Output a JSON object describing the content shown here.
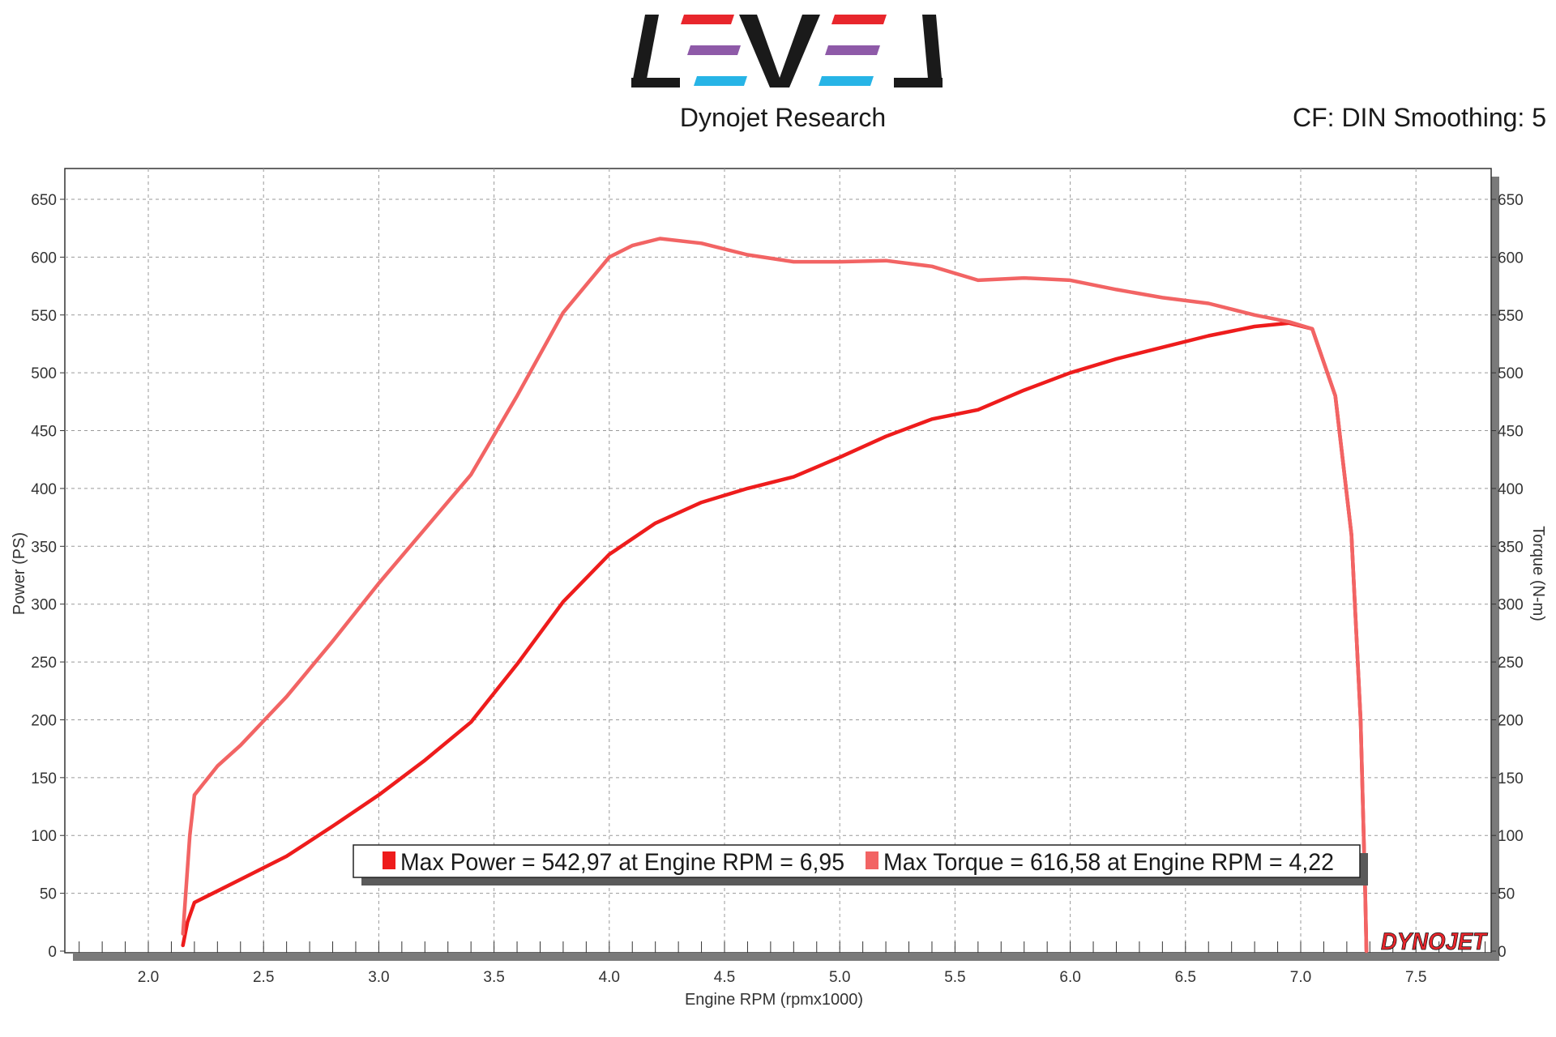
{
  "header": {
    "logo_name": "LEVEL",
    "company": "Dynojet Research",
    "settings": "CF: DIN Smoothing: 5",
    "brand_colors": [
      "#e8262c",
      "#8e5aa8",
      "#27b4e6"
    ]
  },
  "branding": {
    "watermark": "DYNOJET"
  },
  "chart_data": {
    "type": "line",
    "xlabel": "Engine RPM (rpmx1000)",
    "ylabel": "Power (PS)",
    "y2label": "Torque (N-m)",
    "xlim": [
      1.65,
      7.85
    ],
    "ylim": [
      0,
      650
    ],
    "y2lim": [
      0,
      650
    ],
    "x_ticks": [
      2.0,
      2.5,
      3.0,
      3.5,
      4.0,
      4.5,
      5.0,
      5.5,
      6.0,
      6.5,
      7.0,
      7.5
    ],
    "x_tick_labels": [
      "2.0",
      "2.5",
      "3.0",
      "3.5",
      "4.0",
      "4.5",
      "5.0",
      "5.5",
      "6.0",
      "6.5",
      "7.0",
      "7.5"
    ],
    "y_ticks": [
      0,
      50,
      100,
      150,
      200,
      250,
      300,
      350,
      400,
      450,
      500,
      550,
      600,
      650
    ],
    "y_tick_labels": [
      "0",
      "50",
      "100",
      "150",
      "200",
      "250",
      "300",
      "350",
      "400",
      "450",
      "500",
      "550",
      "600",
      "650"
    ],
    "grid": true,
    "legend_position": "bottom-center",
    "series": [
      {
        "name": "Max Power = 542,97 at Engine RPM = 6,95",
        "color": "#ee1c1c",
        "axis": "left",
        "x": [
          2.15,
          2.17,
          2.2,
          2.3,
          2.4,
          2.6,
          2.8,
          3.0,
          3.2,
          3.4,
          3.6,
          3.8,
          4.0,
          4.2,
          4.4,
          4.6,
          4.8,
          5.0,
          5.2,
          5.4,
          5.6,
          5.8,
          6.0,
          6.2,
          6.4,
          6.6,
          6.8,
          6.95,
          7.05,
          7.15,
          7.22,
          7.26,
          7.28,
          7.285
        ],
        "y": [
          5,
          25,
          42,
          52,
          62,
          82,
          108,
          135,
          165,
          198,
          248,
          302,
          343,
          370,
          388,
          400,
          410,
          427,
          445,
          460,
          468,
          485,
          500,
          512,
          522,
          532,
          540,
          543,
          538,
          480,
          360,
          200,
          50,
          0
        ]
      },
      {
        "name": "Max Torque = 616,58 at Engine RPM = 4,22",
        "color": "#f26464",
        "axis": "right",
        "x": [
          2.15,
          2.18,
          2.2,
          2.3,
          2.4,
          2.6,
          2.8,
          3.0,
          3.2,
          3.4,
          3.6,
          3.8,
          4.0,
          4.1,
          4.22,
          4.4,
          4.6,
          4.8,
          5.0,
          5.2,
          5.4,
          5.6,
          5.8,
          6.0,
          6.2,
          6.4,
          6.6,
          6.8,
          6.95,
          7.05,
          7.15,
          7.22,
          7.26,
          7.28,
          7.285
        ],
        "y": [
          15,
          100,
          135,
          160,
          178,
          220,
          268,
          318,
          365,
          412,
          480,
          552,
          600,
          610,
          616,
          612,
          602,
          596,
          596,
          597,
          592,
          580,
          582,
          580,
          572,
          565,
          560,
          550,
          544,
          538,
          480,
          360,
          200,
          50,
          0
        ]
      }
    ]
  }
}
